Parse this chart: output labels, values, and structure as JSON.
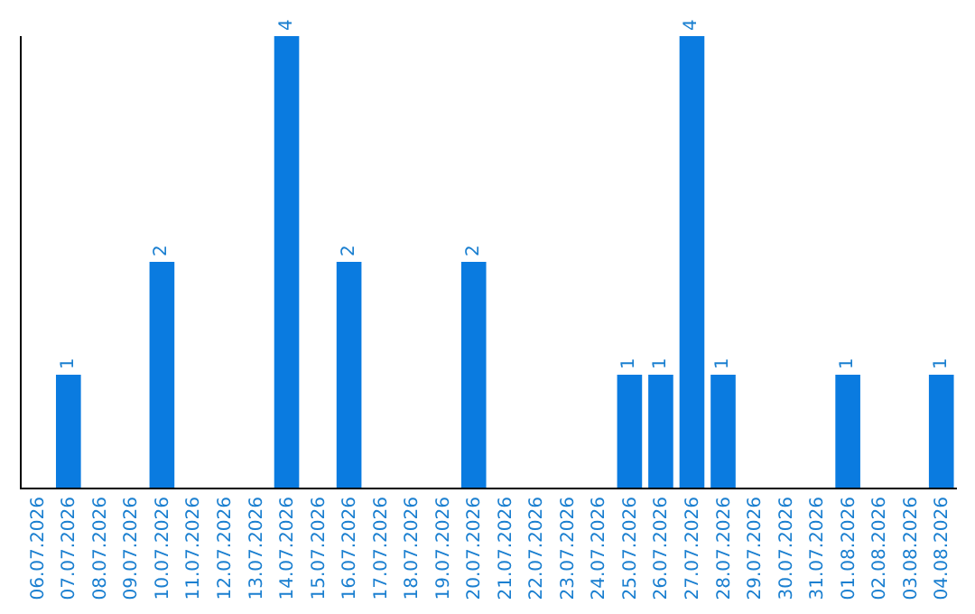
{
  "chart_data": {
    "type": "bar",
    "categories": [
      "06.07.2026",
      "07.07.2026",
      "08.07.2026",
      "09.07.2026",
      "10.07.2026",
      "11.07.2026",
      "12.07.2026",
      "13.07.2026",
      "14.07.2026",
      "15.07.2026",
      "16.07.2026",
      "17.07.2026",
      "18.07.2026",
      "19.07.2026",
      "20.07.2026",
      "21.07.2026",
      "22.07.2026",
      "23.07.2026",
      "24.07.2026",
      "25.07.2026",
      "26.07.2026",
      "27.07.2026",
      "28.07.2026",
      "29.07.2026",
      "30.07.2026",
      "31.07.2026",
      "01.08.2026",
      "02.08.2026",
      "03.08.2026",
      "04.08.2026"
    ],
    "values": [
      0,
      1,
      0,
      0,
      2,
      0,
      0,
      0,
      4,
      0,
      2,
      0,
      0,
      0,
      2,
      0,
      0,
      0,
      0,
      1,
      1,
      4,
      1,
      0,
      0,
      0,
      1,
      0,
      0,
      1
    ],
    "value_labels": [
      null,
      "1",
      null,
      null,
      "2",
      null,
      null,
      null,
      "4",
      null,
      "2",
      null,
      null,
      null,
      "2",
      null,
      null,
      null,
      null,
      "1",
      "1",
      "4",
      "1",
      null,
      null,
      null,
      "1",
      null,
      null,
      "1"
    ],
    "color": "#0a7be0",
    "ylim": [
      0,
      4
    ],
    "tick_labels": "x",
    "grid": false
  }
}
